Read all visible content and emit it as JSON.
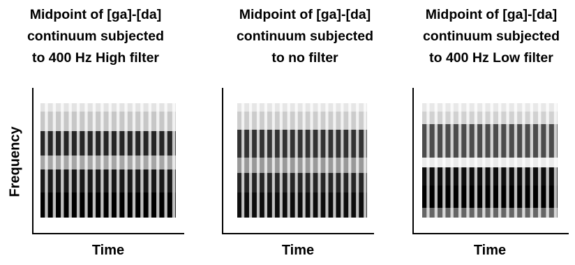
{
  "y_axis_label": "Frequency",
  "panels": [
    {
      "title_lines": [
        "Midpoint of [ga]-[da]",
        "continuum subjected",
        "to 400 Hz High filter"
      ],
      "x_axis_label": "Time",
      "spectrogram_icon": "spectrogram-high-filter"
    },
    {
      "title_lines": [
        "Midpoint of [ga]-[da]",
        "continuum subjected",
        "to no filter"
      ],
      "x_axis_label": "Time",
      "spectrogram_icon": "spectrogram-no-filter"
    },
    {
      "title_lines": [
        "Midpoint of [ga]-[da]",
        "continuum subjected",
        "to 400 Hz Low filter"
      ],
      "x_axis_label": "Time",
      "spectrogram_icon": "spectrogram-low-filter"
    }
  ],
  "colors": {
    "ink": "#000000",
    "background": "#ffffff"
  }
}
